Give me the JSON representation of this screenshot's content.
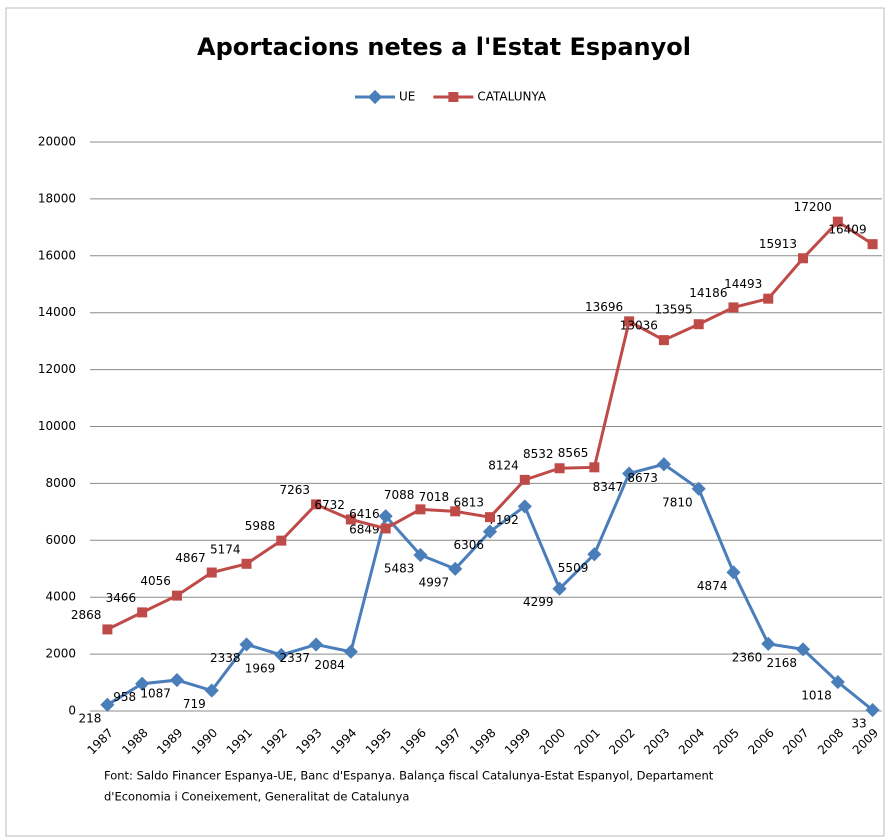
{
  "chart_data": {
    "type": "line",
    "title": "Aportacions netes a l'Estat Espanyol",
    "categories": [
      "1987",
      "1988",
      "1989",
      "1990",
      "1991",
      "1992",
      "1993",
      "1994",
      "1995",
      "1996",
      "1997",
      "1998",
      "1999",
      "2000",
      "2001",
      "2002",
      "2003",
      "2004",
      "2005",
      "2006",
      "2007",
      "2008",
      "2009"
    ],
    "series": [
      {
        "name": "UE",
        "color": "#4a7ebb",
        "values": [
          218,
          958,
          1087,
          719,
          2338,
          1969,
          2337,
          2084,
          6849,
          5483,
          4997,
          6306,
          7192,
          4299,
          5509,
          8347,
          8673,
          7810,
          4874,
          2360,
          2168,
          1018,
          33
        ]
      },
      {
        "name": "CATALUNYA",
        "color": "#be4b48",
        "values": [
          2868,
          3466,
          4056,
          4867,
          5174,
          5988,
          7263,
          6732,
          6416,
          7088,
          7018,
          6813,
          8124,
          8532,
          8565,
          13696,
          13036,
          13595,
          14186,
          14493,
          15913,
          17200,
          16409
        ]
      }
    ],
    "ylim": [
      0,
      20000
    ],
    "yticks": [
      0,
      2000,
      4000,
      6000,
      8000,
      10000,
      12000,
      14000,
      16000,
      18000,
      20000
    ],
    "grid": true,
    "legend": "top",
    "source": [
      "Font: Saldo Financer Espanya-UE, Banc d'Espanya. Balança fiscal Catalunya-Estat Espanyol, Departament",
      "d'Economia i Coneixement, Generalitat de Catalunya"
    ]
  }
}
